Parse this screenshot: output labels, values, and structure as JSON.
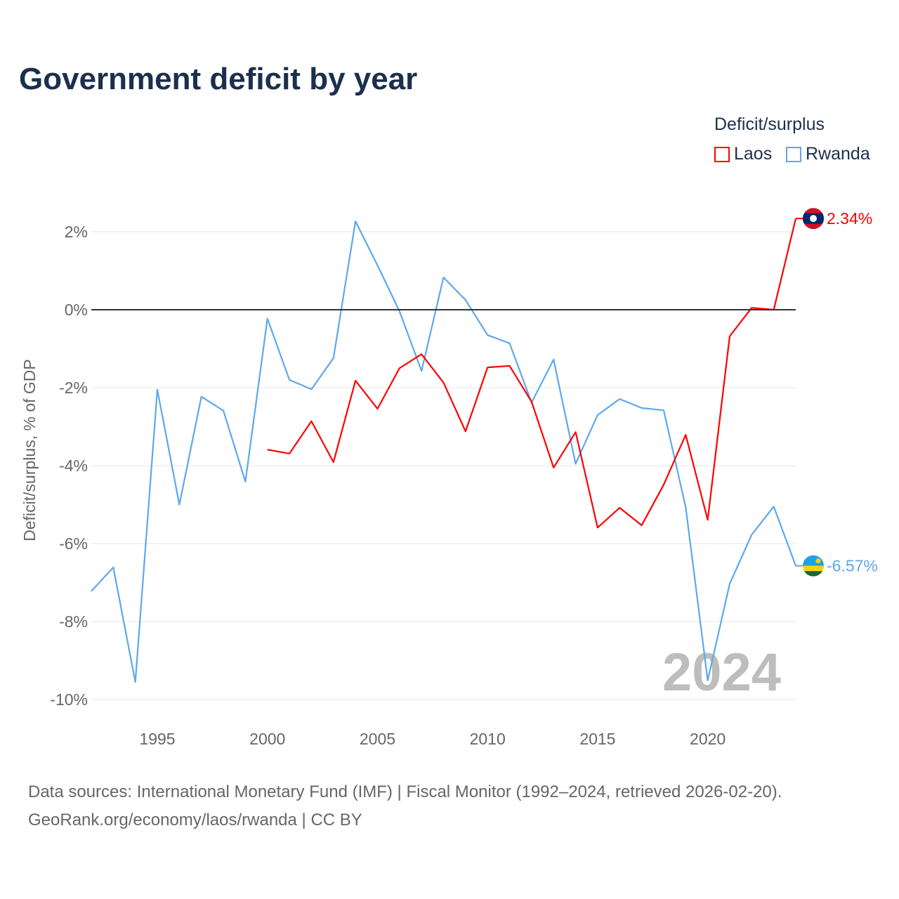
{
  "chart_data": {
    "type": "line",
    "title": "Government deficit by year",
    "xlabel": "",
    "ylabel": "Deficit/surplus, % of GDP",
    "xlim": [
      1992,
      2024
    ],
    "ylim": [
      -10,
      2
    ],
    "x_ticks": [
      1995,
      2000,
      2005,
      2010,
      2015,
      2020
    ],
    "x_tick_labels": [
      "1995",
      "2000",
      "2005",
      "2010",
      "2015",
      "2020"
    ],
    "y_ticks": [
      2,
      0,
      -2,
      -4,
      -6,
      -8,
      -10
    ],
    "y_tick_labels": [
      "2%",
      "0%",
      "-2%",
      "-4%",
      "-6%",
      "-8%",
      "-10%"
    ],
    "legend_title": "Deficit/surplus",
    "legend_position": "top-right",
    "year_watermark": "2024",
    "series": [
      {
        "name": "Laos",
        "color": "#ff0000",
        "end_label": "2.34%",
        "x": [
          2000,
          2001,
          2002,
          2003,
          2004,
          2005,
          2006,
          2007,
          2008,
          2009,
          2010,
          2011,
          2012,
          2013,
          2014,
          2015,
          2016,
          2017,
          2018,
          2019,
          2020,
          2021,
          2022,
          2023,
          2024
        ],
        "values": [
          -3.59,
          -3.69,
          -2.86,
          -3.91,
          -1.82,
          -2.54,
          -1.5,
          -1.14,
          -1.87,
          -3.12,
          -1.48,
          -1.44,
          -2.36,
          -4.05,
          -3.14,
          -5.59,
          -5.08,
          -5.53,
          -4.49,
          -3.21,
          -5.39,
          -0.68,
          0.05,
          0.0,
          2.34
        ]
      },
      {
        "name": "Rwanda",
        "color": "#5ea8ec",
        "end_label": "-6.57%",
        "x": [
          1992,
          1993,
          1994,
          1995,
          1996,
          1997,
          1998,
          1999,
          2000,
          2001,
          2002,
          2003,
          2004,
          2005,
          2006,
          2007,
          2008,
          2009,
          2010,
          2011,
          2012,
          2013,
          2014,
          2015,
          2016,
          2017,
          2018,
          2019,
          2020,
          2021,
          2022,
          2023,
          2024
        ],
        "values": [
          -7.22,
          -6.61,
          -9.55,
          -2.05,
          -5.0,
          -2.23,
          -2.59,
          -4.41,
          -0.23,
          -1.8,
          -2.04,
          -1.24,
          2.27,
          1.14,
          -0.04,
          -1.57,
          0.83,
          0.25,
          -0.65,
          -0.86,
          -2.38,
          -1.28,
          -3.95,
          -2.7,
          -2.29,
          -2.52,
          -2.58,
          -5.06,
          -9.51,
          -7.03,
          -5.77,
          -5.05,
          -6.57
        ]
      }
    ]
  },
  "source_line1": "Data sources: International Monetary Fund (IMF) | Fiscal Monitor (1992–2024, retrieved 2026-02-20).",
  "source_line2": "GeoRank.org/economy/laos/rwanda | CC BY"
}
